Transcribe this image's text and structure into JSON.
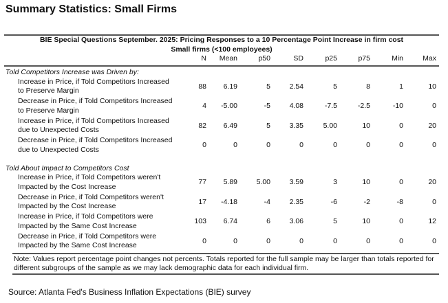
{
  "title": "Summary Statistics: Small Firms",
  "table": {
    "heading": "BIE Special Questions September. 2025: Pricing Responses to a 10 Percentage Point Increase in firm cost",
    "subheading": "Small firms (<100 employees)",
    "columns": [
      "N",
      "Mean",
      "p50",
      "SD",
      "p25",
      "p75",
      "Min",
      "Max"
    ],
    "groups": [
      {
        "label": "Told Competitors Increase was Driven by:",
        "rows": [
          {
            "label": [
              "Increase in Price, if Told Competitors Increased",
              "to Preserve Margin"
            ],
            "values": [
              "88",
              "6.19",
              "5",
              "2.54",
              "5",
              "8",
              "1",
              "10"
            ]
          },
          {
            "label": [
              "Decrease in Price, if Told Competitors Increased",
              "to Preserve Margin"
            ],
            "values": [
              "4",
              "-5.00",
              "-5",
              "4.08",
              "-7.5",
              "-2.5",
              "-10",
              "0"
            ]
          },
          {
            "label": [
              "Increase in Price, if Told Competitors Increased",
              "due to Unexpected Costs"
            ],
            "values": [
              "82",
              "6.49",
              "5",
              "3.35",
              "5.00",
              "10",
              "0",
              "20"
            ]
          },
          {
            "label": [
              "Decrease in Price, if Told Competitors Increased",
              "due to Unexpected Costs"
            ],
            "values": [
              "0",
              "0",
              "0",
              "0",
              "0",
              "0",
              "0",
              "0"
            ]
          }
        ]
      },
      {
        "label": "Told About Impact to Competitors Cost",
        "rows": [
          {
            "label": [
              "Increase in Price, if Told Competitors weren't",
              "Impacted by the Cost Increase"
            ],
            "values": [
              "77",
              "5.89",
              "5.00",
              "3.59",
              "3",
              "10",
              "0",
              "20"
            ]
          },
          {
            "label": [
              "Decrease in Price, if Told Competitors weren't",
              "Impacted by the Cost Increase"
            ],
            "values": [
              "17",
              "-4.18",
              "-4",
              "2.35",
              "-6",
              "-2",
              "-8",
              "0"
            ]
          },
          {
            "label": [
              "Increase in Price, if Told Competitors were",
              "Impacted by the Same Cost Increase"
            ],
            "values": [
              "103",
              "6.74",
              "6",
              "3.06",
              "5",
              "10",
              "0",
              "12"
            ]
          },
          {
            "label": [
              "Decrease in Price, if Told Competitors were",
              "Impacted by the Same Cost Increase"
            ],
            "values": [
              "0",
              "0",
              "0",
              "0",
              "0",
              "0",
              "0",
              "0"
            ]
          }
        ]
      }
    ],
    "note": "Note: Values report percentage point changes not percents. Totals reported for the full sample may be larger than totals reported for different subgroups of the sample as we may lack demographic data for each individual firm."
  },
  "source": "Source: Atlanta Fed's Business Inflation Expectations (BIE) survey"
}
